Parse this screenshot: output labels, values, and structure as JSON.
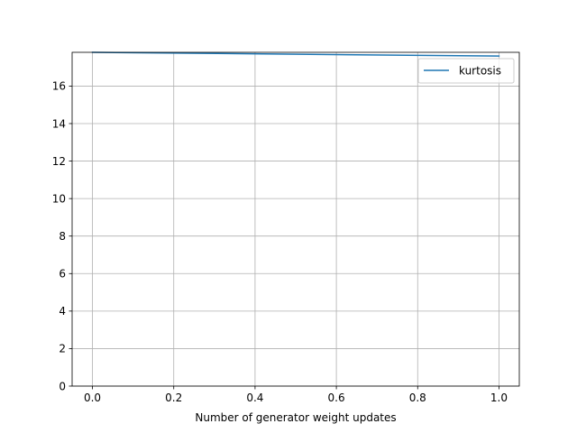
{
  "chart_data": {
    "type": "line",
    "title": "",
    "xlabel": "Number of generator weight updates",
    "ylabel": "",
    "xlim": [
      -0.05,
      1.05
    ],
    "ylim": [
      0,
      17.8
    ],
    "xticks": [
      0.0,
      0.2,
      0.4,
      0.6,
      0.8,
      1.0
    ],
    "xtick_labels": [
      "0.0",
      "0.2",
      "0.4",
      "0.6",
      "0.8",
      "1.0"
    ],
    "yticks": [
      0,
      2,
      4,
      6,
      8,
      10,
      12,
      14,
      16
    ],
    "ytick_labels": [
      "0",
      "2",
      "4",
      "6",
      "8",
      "10",
      "12",
      "14",
      "16"
    ],
    "grid": true,
    "legend_position": "top-right",
    "series": [
      {
        "name": "kurtosis",
        "color": "#1f77b4",
        "x": [
          0,
          1
        ],
        "y": [
          17.8,
          17.6
        ]
      }
    ]
  }
}
